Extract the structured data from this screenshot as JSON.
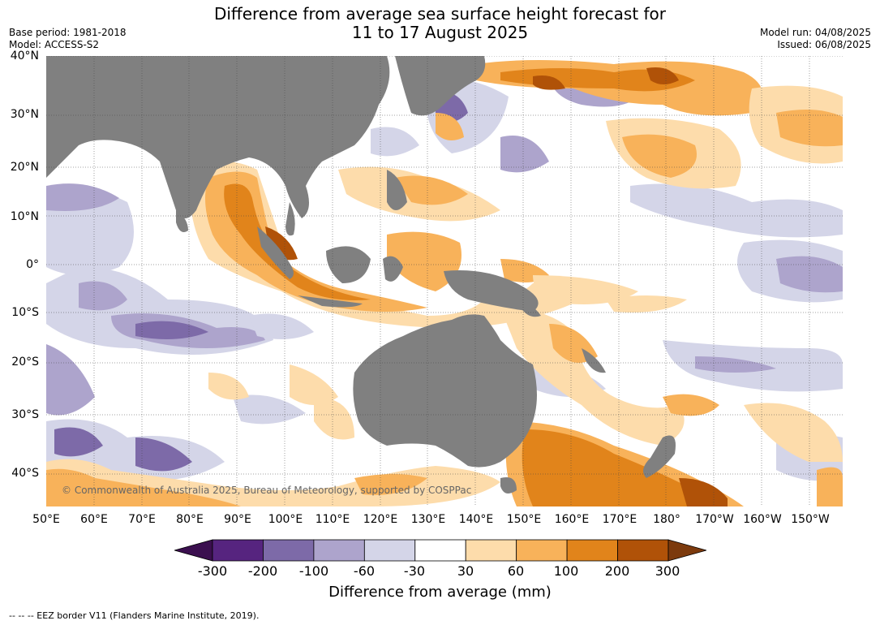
{
  "title": {
    "line1": "Difference from average sea surface height forecast for",
    "line2": "11 to 17 August 2025"
  },
  "meta": {
    "base_period": "Base period: 1981-2018",
    "model": "Model: ACCESS-S2",
    "model_run": "Model run: 04/08/2025",
    "issued": "Issued: 06/08/2025"
  },
  "latitude_labels": [
    "40°N",
    "30°N",
    "20°N",
    "10°N",
    "0°",
    "10°S",
    "20°S",
    "30°S",
    "40°S"
  ],
  "longitude_labels": [
    "50°E",
    "60°E",
    "70°E",
    "80°E",
    "90°E",
    "100°E",
    "110°E",
    "120°E",
    "130°E",
    "140°E",
    "150°E",
    "160°E",
    "170°E",
    "180°",
    "170°W",
    "160°W",
    "150°W"
  ],
  "copyright": "© Commonwealth of Australia 2025, Bureau of Meteorology, supported by COSPPac",
  "colorbar": {
    "title": "Difference from average (mm)",
    "tick_labels": [
      "-300",
      "-200",
      "-100",
      "-60",
      "-30",
      "30",
      "60",
      "100",
      "200",
      "300"
    ],
    "colors": [
      "#3b0f4f",
      "#56247f",
      "#7d6aa8",
      "#ada4cc",
      "#d4d5e8",
      "#ffffff",
      "#fddcab",
      "#f8b25a",
      "#e1841b",
      "#b05208",
      "#7c3a0d"
    ]
  },
  "footnote": "--  --  -- EEZ border V11 (Flanders Marine Institute, 2019).",
  "land_color": "#808080"
}
